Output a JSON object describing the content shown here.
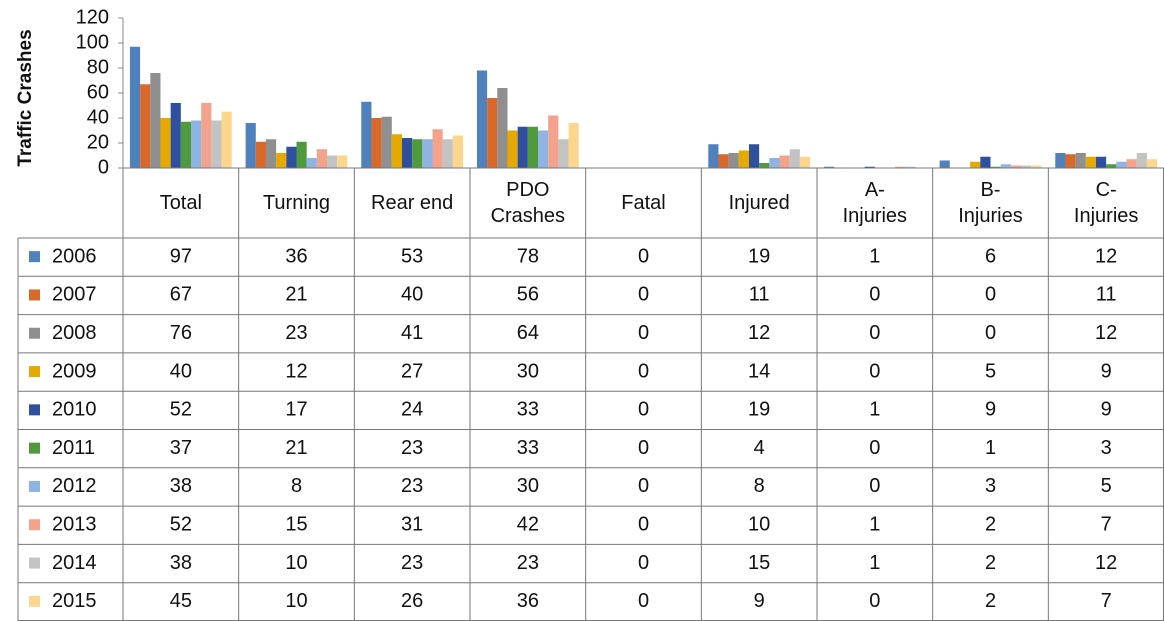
{
  "chart_data": {
    "type": "bar",
    "y_label": "Traffic Crashes",
    "categories": [
      "Total",
      "Turning",
      "Rear end",
      "PDO Crashes",
      "Fatal",
      "Injured",
      "A- Injuries",
      "B- Injuries",
      "C- Injuries"
    ],
    "ylim": [
      0,
      120
    ],
    "yticks": [
      0,
      20,
      40,
      60,
      80,
      100,
      120
    ],
    "series": [
      {
        "name": "2006",
        "color": "#4f81bd",
        "values": [
          97,
          36,
          53,
          78,
          0,
          19,
          1,
          6,
          12
        ]
      },
      {
        "name": "2007",
        "color": "#d8692a",
        "values": [
          67,
          21,
          40,
          56,
          0,
          11,
          0,
          0,
          11
        ]
      },
      {
        "name": "2008",
        "color": "#8f8f8f",
        "values": [
          76,
          23,
          41,
          64,
          0,
          12,
          0,
          0,
          12
        ]
      },
      {
        "name": "2009",
        "color": "#e5a900",
        "values": [
          40,
          12,
          27,
          30,
          0,
          14,
          0,
          5,
          9
        ]
      },
      {
        "name": "2010",
        "color": "#2f4f9f",
        "values": [
          52,
          17,
          24,
          33,
          0,
          19,
          1,
          9,
          9
        ]
      },
      {
        "name": "2011",
        "color": "#4e9a3c",
        "values": [
          37,
          21,
          23,
          33,
          0,
          4,
          0,
          1,
          3
        ]
      },
      {
        "name": "2012",
        "color": "#8eb4e3",
        "values": [
          38,
          8,
          23,
          30,
          0,
          8,
          0,
          3,
          5
        ]
      },
      {
        "name": "2013",
        "color": "#f3a28c",
        "values": [
          52,
          15,
          31,
          42,
          0,
          10,
          1,
          2,
          7
        ]
      },
      {
        "name": "2014",
        "color": "#c3c3c3",
        "values": [
          38,
          10,
          23,
          23,
          0,
          15,
          1,
          2,
          12
        ]
      },
      {
        "name": "2015",
        "color": "#fcd68c",
        "values": [
          45,
          10,
          26,
          36,
          0,
          9,
          0,
          2,
          7
        ]
      }
    ]
  }
}
